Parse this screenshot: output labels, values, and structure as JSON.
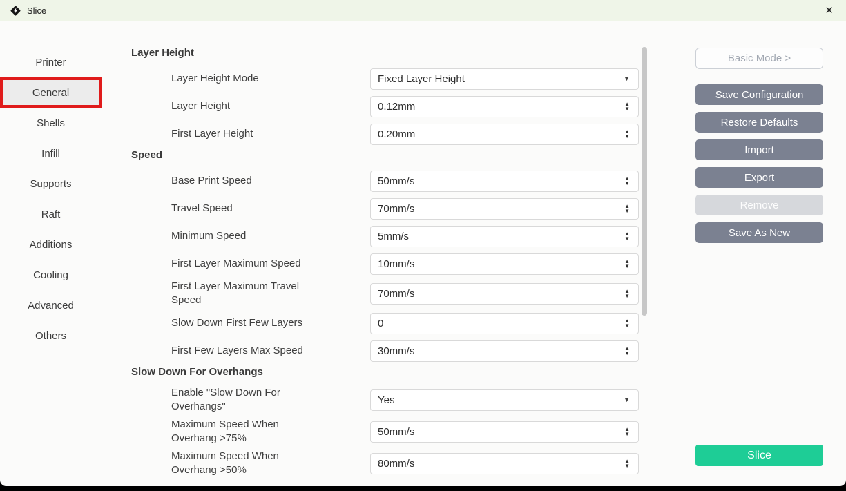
{
  "titlebar": {
    "title": "Slice",
    "close_glyph": "✕"
  },
  "icons": {
    "app_logo": "diamond-lightning-logo",
    "dropdown_arrow": "▼",
    "spinner_up": "▲",
    "spinner_down": "▼"
  },
  "sidebar": {
    "items": [
      {
        "label": "Printer",
        "selected": false
      },
      {
        "label": "General",
        "selected": true
      },
      {
        "label": "Shells",
        "selected": false
      },
      {
        "label": "Infill",
        "selected": false
      },
      {
        "label": "Supports",
        "selected": false
      },
      {
        "label": "Raft",
        "selected": false
      },
      {
        "label": "Additions",
        "selected": false
      },
      {
        "label": "Cooling",
        "selected": false
      },
      {
        "label": "Advanced",
        "selected": false
      },
      {
        "label": "Others",
        "selected": false
      }
    ]
  },
  "settings": {
    "sections": [
      {
        "title": "Layer Height",
        "rows": [
          {
            "label": "Layer Height Mode",
            "value": "Fixed Layer Height",
            "control": "dropdown"
          },
          {
            "label": "Layer Height",
            "value": "0.12mm",
            "control": "spinner"
          },
          {
            "label": "First Layer Height",
            "value": "0.20mm",
            "control": "spinner"
          }
        ]
      },
      {
        "title": "Speed",
        "rows": [
          {
            "label": "Base Print Speed",
            "value": "50mm/s",
            "control": "spinner"
          },
          {
            "label": "Travel Speed",
            "value": "70mm/s",
            "control": "spinner"
          },
          {
            "label": "Minimum Speed",
            "value": "5mm/s",
            "control": "spinner"
          },
          {
            "label": "First Layer Maximum Speed",
            "value": "10mm/s",
            "control": "spinner"
          },
          {
            "label": "First Layer Maximum Travel Speed",
            "value": "70mm/s",
            "control": "spinner"
          },
          {
            "label": "Slow Down First Few Layers",
            "value": "0",
            "control": "spinner"
          },
          {
            "label": "First Few Layers Max Speed",
            "value": "30mm/s",
            "control": "spinner"
          }
        ]
      },
      {
        "title": "Slow Down For Overhangs",
        "rows": [
          {
            "label": "Enable \"Slow Down For Overhangs\"",
            "value": "Yes",
            "control": "dropdown"
          },
          {
            "label": "Maximum Speed When Overhang >75%",
            "value": "50mm/s",
            "control": "spinner"
          },
          {
            "label": "Maximum Speed When Overhang >50%",
            "value": "80mm/s",
            "control": "spinner"
          }
        ]
      }
    ]
  },
  "actions": {
    "basic_mode_label": "Basic Mode >",
    "buttons": [
      {
        "label": "Save Configuration",
        "state": "normal"
      },
      {
        "label": "Restore Defaults",
        "state": "normal"
      },
      {
        "label": "Import",
        "state": "normal"
      },
      {
        "label": "Export",
        "state": "normal"
      },
      {
        "label": "Remove",
        "state": "disabled"
      },
      {
        "label": "Save As New",
        "state": "normal"
      }
    ],
    "slice_label": "Slice"
  },
  "colors": {
    "titlebar_bg": "#eff5e8",
    "window_bg": "#fbfbfa",
    "selected_item_bg": "#ececec",
    "highlight_red": "#e01b1b",
    "action_button_gray": "#7b8191",
    "action_button_disabled": "#d6d8dc",
    "slice_green": "#1ecd96"
  }
}
